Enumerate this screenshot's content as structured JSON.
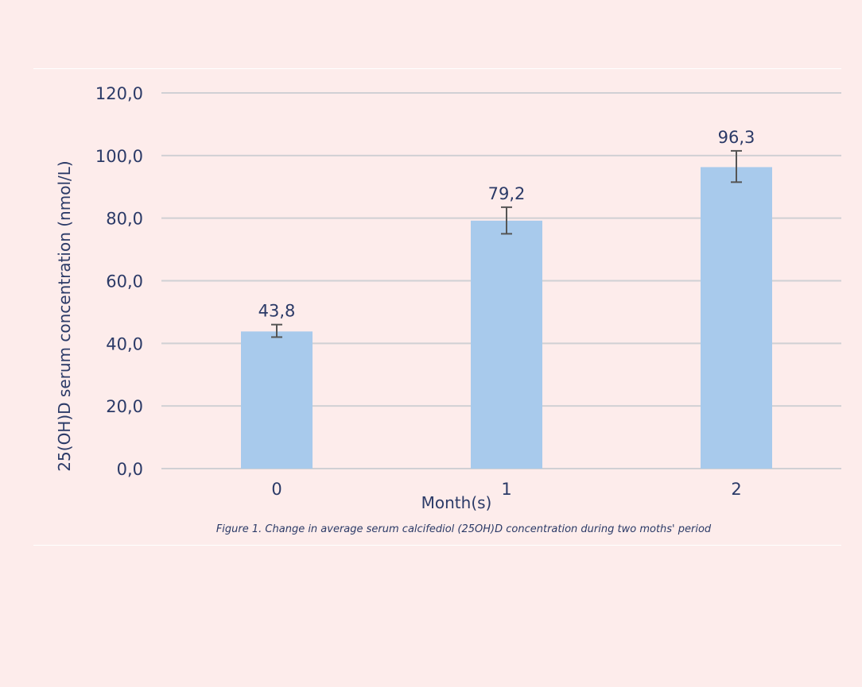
{
  "chart_data": {
    "type": "bar",
    "categories": [
      "0",
      "1",
      "2"
    ],
    "values": [
      43.8,
      79.2,
      96.3
    ],
    "value_labels": [
      "43,8",
      "79,2",
      "96,3"
    ],
    "error_bars": [
      {
        "low": 42.0,
        "high": 46.0
      },
      {
        "low": 75.0,
        "high": 83.5
      },
      {
        "low": 91.5,
        "high": 101.5
      }
    ],
    "ylim": [
      0,
      120
    ],
    "y_ticks": [
      {
        "value": 0,
        "label": "0,0"
      },
      {
        "value": 20,
        "label": "20,0"
      },
      {
        "value": 40,
        "label": "40,0"
      },
      {
        "value": 60,
        "label": "60,0"
      },
      {
        "value": 80,
        "label": "80,0"
      },
      {
        "value": 100,
        "label": "100,0"
      },
      {
        "value": 120,
        "label": "120,0"
      }
    ],
    "xlabel": "Month(s)",
    "ylabel": "25(OH)D serum concentration (nmol/L)",
    "grid": true,
    "bar_color": "#a8caec",
    "gridline_color": "#d0d0d4",
    "error_color": "#555555",
    "text_color": "#2b3a67",
    "caption": "Figure 1. Change in average serum calcifediol (25OH)D concentration during two moths' period"
  }
}
